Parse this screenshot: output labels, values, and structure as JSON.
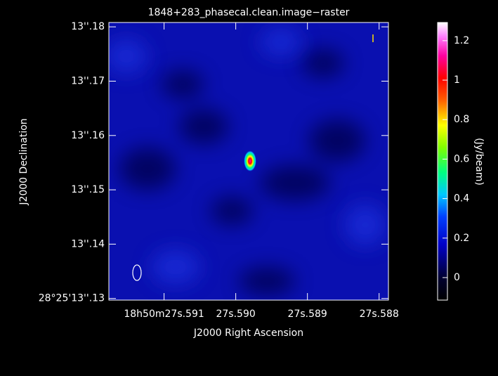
{
  "chart_data": {
    "type": "image",
    "title": "1848+283_phasecal.clean.image−raster",
    "x_label": "J2000 Right Ascension",
    "y_label": "J2000 Declination",
    "colorbar_label": "(Jy/beam)",
    "xlim": [
      27.59177,
      27.58787
    ],
    "xticks": [
      {
        "value": 27.591,
        "label": "18h50m27s.591"
      },
      {
        "value": 27.59,
        "label": "27s.590"
      },
      {
        "value": 27.589,
        "label": "27s.589"
      },
      {
        "value": 27.588,
        "label": "27s.588"
      }
    ],
    "ylim": [
      13.1297,
      13.1808
    ],
    "yticks": [
      {
        "value": 13.13,
        "label": "28°25'13''.13"
      },
      {
        "value": 13.14,
        "label": "13''.14"
      },
      {
        "value": 13.15,
        "label": "13''.15"
      },
      {
        "value": 13.16,
        "label": "13''.16"
      },
      {
        "value": 13.17,
        "label": "13''.17"
      },
      {
        "value": 13.18,
        "label": "13''.18"
      }
    ],
    "clim": [
      -0.114,
      1.292
    ],
    "cticks": [
      0,
      0.2,
      0.4,
      0.6,
      0.8,
      1,
      1.2
    ],
    "source": {
      "x": 27.5898,
      "y": 13.1553,
      "peak": 1.25
    }
  }
}
